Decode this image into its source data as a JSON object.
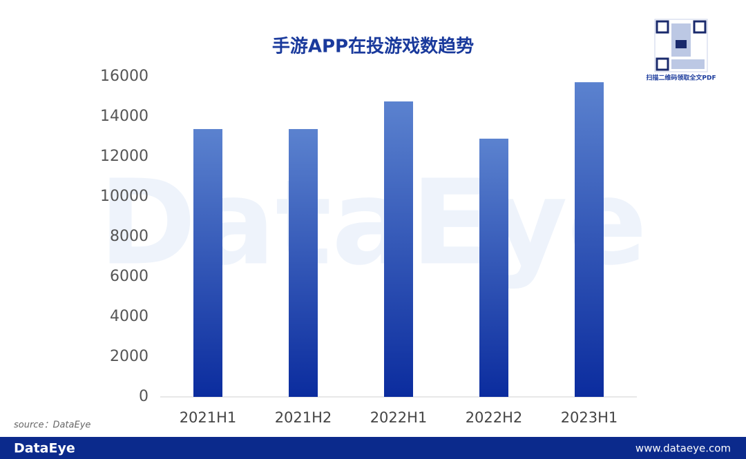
{
  "chart_data": {
    "type": "bar",
    "title": "手游APP在投游戏数趋势",
    "categories": [
      "2021H1",
      "2021H2",
      "2022H1",
      "2022H2",
      "2023H1"
    ],
    "values": [
      13380,
      13380,
      14760,
      12900,
      15720
    ],
    "gradient": [
      "#5b82cf",
      "#0b2c9e"
    ],
    "ylim": [
      0,
      16000
    ],
    "yticks": [
      0,
      2000,
      4000,
      6000,
      8000,
      10000,
      12000,
      14000,
      16000
    ],
    "grid": false,
    "source": "source：DataEye",
    "watermark": "DataEye"
  },
  "footer": {
    "brand": "DataEye",
    "url": "www.dataeye.com"
  },
  "qr": {
    "caption": "扫描二维码领取全文PDF"
  }
}
